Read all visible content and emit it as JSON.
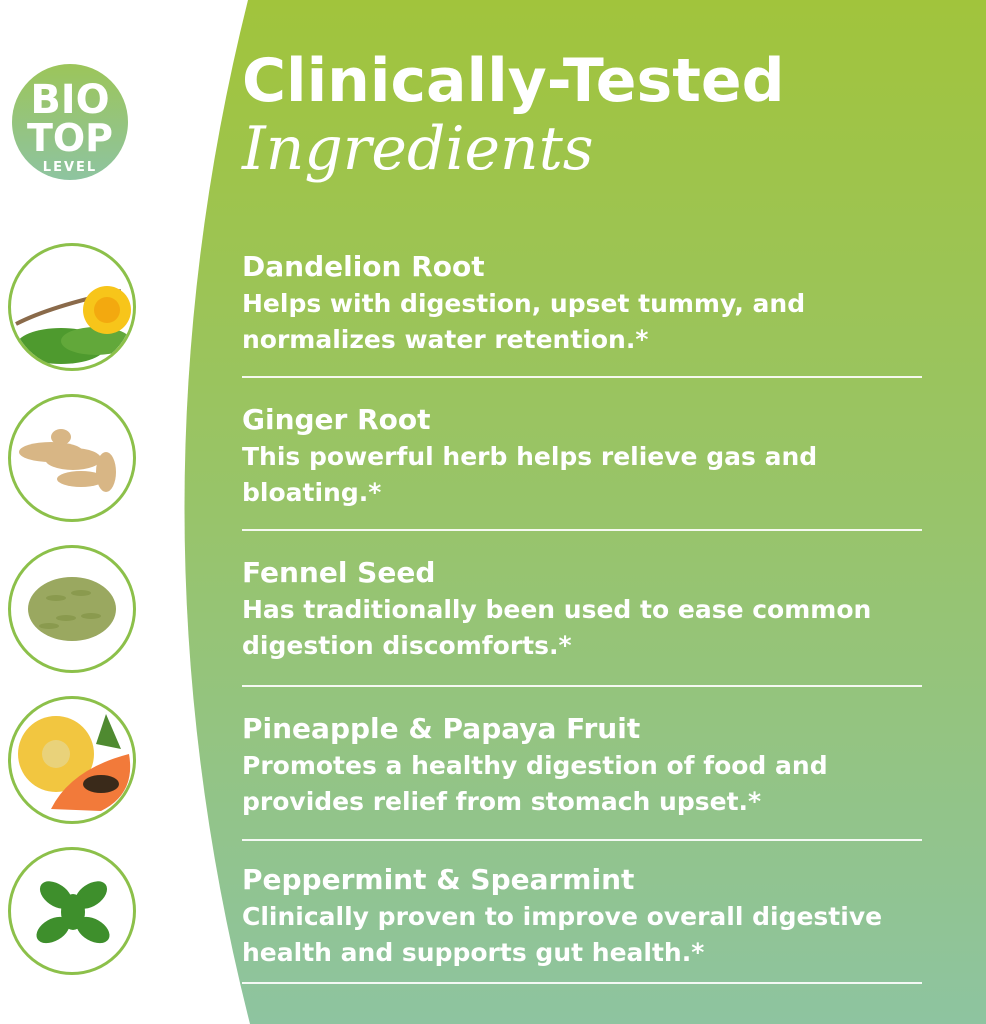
{
  "logo": {
    "line1": "BIO",
    "line2": "TOP",
    "line3": "LEVEL"
  },
  "title": {
    "line1": "Clinically-Tested",
    "line2": "Ingredients"
  },
  "colors": {
    "panel_top": "#a1c43c",
    "panel_bottom": "#8ec4a0",
    "thumb_border": "#8cc04a"
  },
  "ingredients": [
    {
      "name": "Dandelion Root",
      "description": "Helps with digestion, upset tummy, and normalizes water retention.*",
      "icon": "dandelion-icon"
    },
    {
      "name": "Ginger Root",
      "description": "This powerful herb helps relieve gas and bloating.*",
      "icon": "ginger-icon"
    },
    {
      "name": "Fennel Seed",
      "description": "Has traditionally been used to ease common digestion discomforts.*",
      "icon": "fennel-seed-icon"
    },
    {
      "name": "Pineapple & Papaya Fruit",
      "description": "Promotes a healthy digestion of food and provides relief from stomach upset.*",
      "icon": "pineapple-papaya-icon"
    },
    {
      "name": "Peppermint & Spearmint",
      "description": "Clinically proven to improve overall digestive health and supports gut health.*",
      "icon": "mint-leaf-icon"
    }
  ]
}
